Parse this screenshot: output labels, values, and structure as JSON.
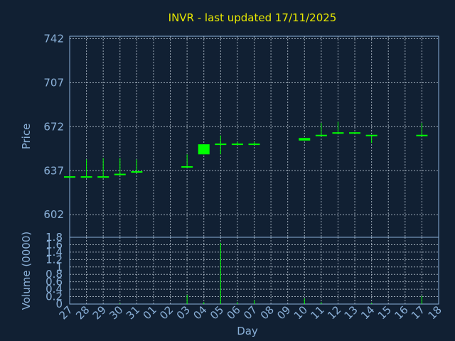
{
  "title": "INVR - last updated 17/11/2025",
  "chart_data": [
    {
      "type": "candlestick",
      "ylabel": "Price",
      "ylim": [
        584,
        744
      ],
      "yticks": [
        742,
        707,
        672,
        637,
        602
      ],
      "x": [
        "27",
        "28",
        "29",
        "30",
        "31",
        "01",
        "02",
        "03",
        "04",
        "05",
        "06",
        "07",
        "08",
        "09",
        "10",
        "11",
        "12",
        "13",
        "14",
        "15",
        "16",
        "17",
        "18"
      ],
      "candles": [
        {
          "day": "27",
          "open": 632,
          "close": 632,
          "high": 632,
          "low": 632
        },
        {
          "day": "28",
          "open": 632,
          "close": 632,
          "high": 646,
          "low": 632
        },
        {
          "day": "29",
          "open": 632,
          "close": 632,
          "high": 647,
          "low": 632
        },
        {
          "day": "30",
          "open": 634,
          "close": 634,
          "high": 647,
          "low": 634
        },
        {
          "day": "31",
          "open": 636,
          "close": 636,
          "high": 646,
          "low": 636
        },
        {
          "day": "03",
          "open": 640,
          "close": 640,
          "high": 650,
          "low": 640
        },
        {
          "day": "04",
          "open": 658,
          "close": 650,
          "high": 658,
          "low": 650
        },
        {
          "day": "05",
          "open": 658,
          "close": 658,
          "high": 665,
          "low": 650
        },
        {
          "day": "06",
          "open": 658,
          "close": 658,
          "high": 660,
          "low": 658
        },
        {
          "day": "07",
          "open": 658,
          "close": 658,
          "high": 660,
          "low": 658
        },
        {
          "day": "10",
          "open": 663,
          "close": 661,
          "high": 663,
          "low": 661
        },
        {
          "day": "11",
          "open": 665,
          "close": 665,
          "high": 675,
          "low": 665
        },
        {
          "day": "12",
          "open": 667,
          "close": 667,
          "high": 676,
          "low": 667
        },
        {
          "day": "13",
          "open": 667,
          "close": 667,
          "high": 667,
          "low": 667
        },
        {
          "day": "14",
          "open": 665,
          "close": 665,
          "high": 665,
          "low": 659
        },
        {
          "day": "17",
          "open": 665,
          "close": 665,
          "high": 675,
          "low": 665
        }
      ]
    },
    {
      "type": "bar",
      "ylabel": "Volume (0000)",
      "xlabel": "Day",
      "ylim": [
        0,
        1.8
      ],
      "yticks": [
        "1.8",
        "1.6",
        "1.4",
        "1.2",
        "1",
        "0.8",
        "0.6",
        "0.4",
        "0.2",
        "0"
      ],
      "ytick_values": [
        1.8,
        1.6,
        1.4,
        1.2,
        1.0,
        0.8,
        0.6,
        0.4,
        0.2,
        0
      ],
      "categories": [
        "27",
        "28",
        "29",
        "30",
        "31",
        "01",
        "02",
        "03",
        "04",
        "05",
        "06",
        "07",
        "08",
        "09",
        "10",
        "11",
        "12",
        "13",
        "14",
        "15",
        "16",
        "17",
        "18"
      ],
      "bars": [
        {
          "day": "30",
          "value": 0.02
        },
        {
          "day": "03",
          "value": 0.25
        },
        {
          "day": "04",
          "value": 0.05
        },
        {
          "day": "05",
          "value": 1.65
        },
        {
          "day": "06",
          "value": 0.05
        },
        {
          "day": "07",
          "value": 0.1
        },
        {
          "day": "10",
          "value": 0.15
        },
        {
          "day": "11",
          "value": 0.05
        },
        {
          "day": "14",
          "value": 0.03
        },
        {
          "day": "17",
          "value": 0.22
        }
      ]
    }
  ],
  "colors": {
    "background": "#112033",
    "title": "#e8e800",
    "axis": "#8ab0d8",
    "series": "#00ff00"
  }
}
